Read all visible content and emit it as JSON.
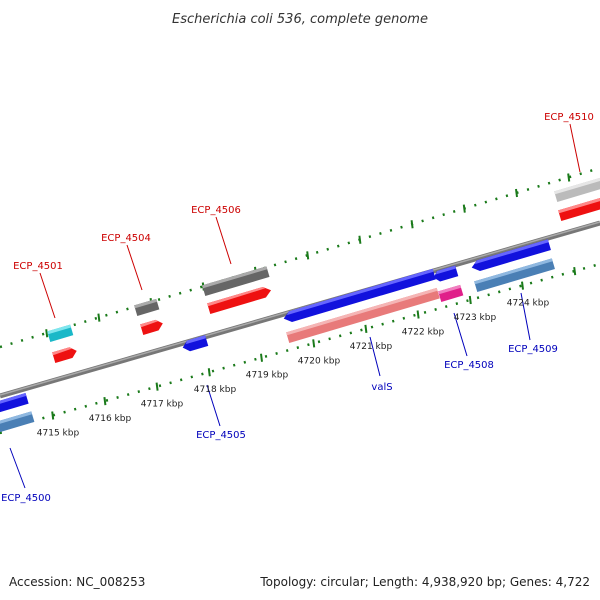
{
  "title": "Escherichia coli 536, complete genome",
  "footer": {
    "accession": "Accession: NC_008253",
    "summary": "Topology: circular; Length: 4,938,920 bp; Genes: 4,722"
  },
  "colors": {
    "forward_label": "#cc0000",
    "reverse_label": "#0000bb",
    "backbone": "#888888",
    "ruler": "#1a7a1a"
  },
  "ruler_labels": [
    {
      "text": "4715 kbp",
      "t": 38
    },
    {
      "text": "4716 kbp",
      "t": 90
    },
    {
      "text": "4717 kbp",
      "t": 142
    },
    {
      "text": "4718 kbp",
      "t": 195
    },
    {
      "text": "4719 kbp",
      "t": 247
    },
    {
      "text": "4720 kbp",
      "t": 299
    },
    {
      "text": "4721 kbp",
      "t": 351
    },
    {
      "text": "4722 kbp",
      "t": 403
    },
    {
      "text": "4723 kbp",
      "t": 455
    },
    {
      "text": "4724 kbp",
      "t": 508
    }
  ],
  "gene_labels": [
    {
      "text": "ECP_4501",
      "strand": "forward"
    },
    {
      "text": "ECP_4504",
      "strand": "forward"
    },
    {
      "text": "ECP_4506",
      "strand": "forward"
    },
    {
      "text": "ECP_4510",
      "strand": "forward"
    },
    {
      "text": "ECP_4505",
      "strand": "reverse"
    },
    {
      "text": "valS",
      "strand": "reverse"
    },
    {
      "text": "ECP_4508",
      "strand": "reverse"
    },
    {
      "text": "ECP_4509",
      "strand": "reverse"
    },
    {
      "text": "ECP_4500",
      "strand": "reverse"
    }
  ]
}
